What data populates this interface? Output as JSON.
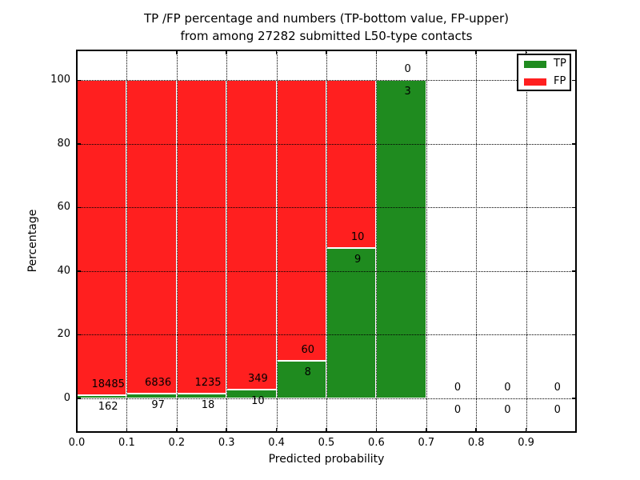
{
  "chart_data": {
    "type": "bar",
    "subtype": "stacked-percentage",
    "title_lines": [
      "TP /FP percentage and numbers (TP-bottom value, FP-upper)",
      "from among 27282 submitted L50-type contacts"
    ],
    "xlabel": "Predicted probability",
    "ylabel": "Percentage",
    "bin_width": 0.1,
    "bin_starts": [
      0.0,
      0.1,
      0.2,
      0.3,
      0.4,
      0.5,
      0.6,
      0.7,
      0.8,
      0.9
    ],
    "series": [
      {
        "name": "TP",
        "color": "#1f8b1f",
        "counts": [
          162,
          97,
          18,
          10,
          8,
          9,
          3,
          0,
          0,
          0
        ]
      },
      {
        "name": "FP",
        "color": "#ff1f1f",
        "counts": [
          18485,
          6836,
          1235,
          349,
          60,
          10,
          0,
          0,
          0,
          0
        ]
      }
    ],
    "annotation_rule": "TP count printed below stack boundary, FP count printed above it",
    "x_ticks": [
      "0.0",
      "0.1",
      "0.2",
      "0.3",
      "0.4",
      "0.5",
      "0.6",
      "0.7",
      "0.8",
      "0.9"
    ],
    "x_tick_values": [
      0.0,
      0.1,
      0.2,
      0.3,
      0.4,
      0.5,
      0.6,
      0.7,
      0.8,
      0.9
    ],
    "y_ticks": [
      "0",
      "20",
      "40",
      "60",
      "80",
      "100"
    ],
    "y_tick_values": [
      0,
      20,
      40,
      60,
      80,
      100
    ],
    "xlim": [
      0.0,
      1.0
    ],
    "ylim": [
      -10.6,
      109.4
    ],
    "grid": {
      "style": "dotted",
      "color": "#000000",
      "on": true
    },
    "bar_edge_color": "#ffffff",
    "legend": {
      "position": "upper-right",
      "entries": [
        {
          "label": "TP",
          "color": "#1f8b1f"
        },
        {
          "label": "FP",
          "color": "#ff1f1f"
        }
      ]
    }
  }
}
